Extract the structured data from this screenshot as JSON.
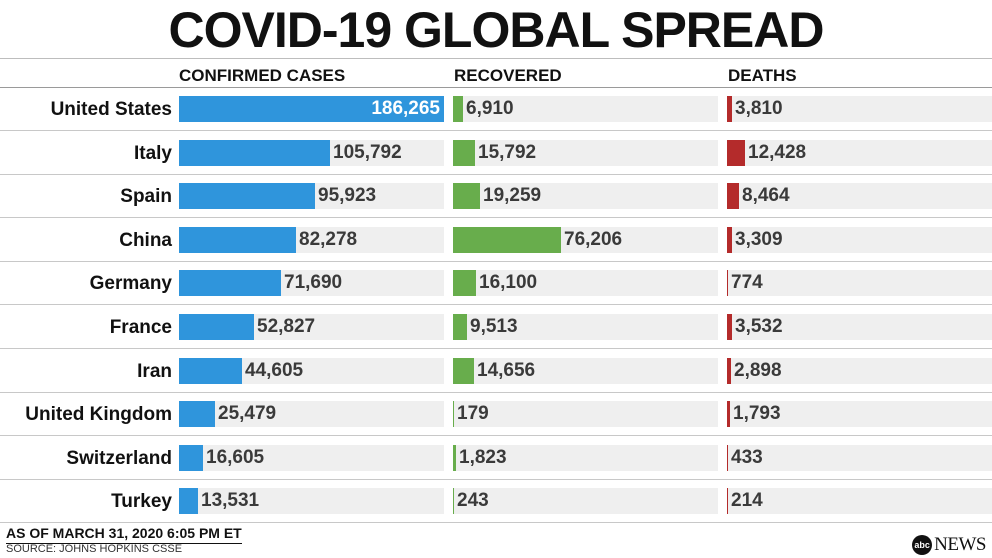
{
  "title": "COVID-19 GLOBAL SPREAD",
  "colors": {
    "confirmed": "#2f95dc",
    "recovered": "#68ad4c",
    "deaths": "#b42b2b",
    "track": "#efefef"
  },
  "chart_data": {
    "type": "bar",
    "title": "COVID-19 GLOBAL SPREAD",
    "categories": [
      "United States",
      "Italy",
      "Spain",
      "China",
      "Germany",
      "France",
      "Iran",
      "United Kingdom",
      "Switzerland",
      "Turkey"
    ],
    "series": [
      {
        "name": "CONFIRMED CASES",
        "values": [
          186265,
          105792,
          95923,
          82278,
          71690,
          52827,
          44605,
          25479,
          16605,
          13531
        ],
        "labels": [
          "186,265",
          "105,792",
          "95,923",
          "82,278",
          "71,690",
          "52,827",
          "44,605",
          "25,479",
          "16,605",
          "13,531"
        ]
      },
      {
        "name": "RECOVERED",
        "values": [
          6910,
          15792,
          19259,
          76206,
          16100,
          9513,
          14656,
          179,
          1823,
          243
        ],
        "labels": [
          "6,910",
          "15,792",
          "19,259",
          "76,206",
          "16,100",
          "9,513",
          "14,656",
          "179",
          "1,823",
          "243"
        ]
      },
      {
        "name": "DEATHS",
        "values": [
          3810,
          12428,
          8464,
          3309,
          774,
          3532,
          2898,
          1793,
          433,
          214
        ],
        "labels": [
          "3,810",
          "12,428",
          "8,464",
          "3,309",
          "774",
          "3,532",
          "2,898",
          "1,793",
          "433",
          "214"
        ]
      }
    ],
    "xlim": [
      0,
      186265
    ]
  },
  "footer": {
    "date": "AS OF MARCH 31, 2020 6:05 PM ET",
    "source": "SOURCE: JOHNS HOPKINS CSSE"
  },
  "logo": {
    "mark": "abc",
    "text": "NEWS"
  }
}
